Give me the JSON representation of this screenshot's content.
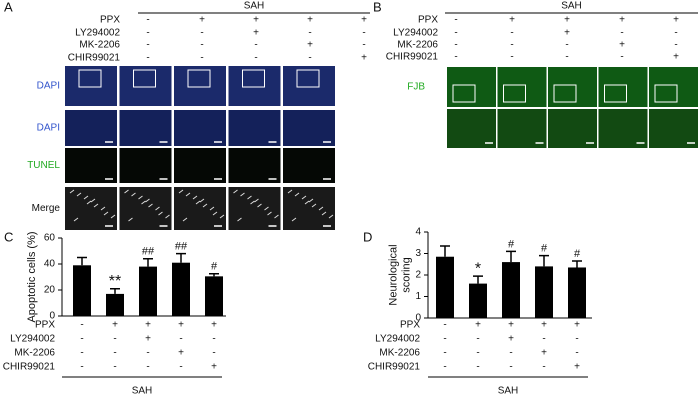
{
  "panels": [
    {
      "letter": "A",
      "group_label": "SAH",
      "conditions": [
        {
          "label": "PPX",
          "signs": [
            "-",
            "+",
            "+",
            "+",
            "+"
          ]
        },
        {
          "label": "LY294002",
          "signs": [
            "-",
            "-",
            "+",
            "-",
            "-"
          ]
        },
        {
          "label": "MK-2206",
          "signs": [
            "-",
            "-",
            "-",
            "+",
            "-"
          ]
        },
        {
          "label": "CHIR99021",
          "signs": [
            "-",
            "-",
            "-",
            "-",
            "+"
          ]
        }
      ],
      "row_labels": [
        "DAPI",
        "DAPI",
        "TUNEL",
        "Merge"
      ]
    },
    {
      "letter": "B",
      "group_label": "SAH",
      "conditions": [
        {
          "label": "PPX",
          "signs": [
            "-",
            "+",
            "+",
            "+",
            "+"
          ]
        },
        {
          "label": "LY294002",
          "signs": [
            "-",
            "-",
            "+",
            "-",
            "-"
          ]
        },
        {
          "label": "MK-2206",
          "signs": [
            "-",
            "-",
            "-",
            "+",
            "-"
          ]
        },
        {
          "label": "CHIR99021",
          "signs": [
            "-",
            "-",
            "-",
            "-",
            "+"
          ]
        }
      ],
      "row_labels": [
        "FJB"
      ]
    }
  ],
  "chart_data": [
    {
      "type": "bar",
      "letter": "C",
      "y_label": [
        "Apoptotic cells (%)"
      ],
      "values": [
        39,
        17,
        38,
        41,
        30.5
      ],
      "errors": [
        6,
        4,
        6,
        7,
        2
      ],
      "annotations": [
        null,
        "**",
        "##",
        "##",
        "#"
      ],
      "ylim": [
        0,
        60
      ],
      "yticks": [
        0,
        20,
        40,
        60
      ],
      "color": "#000000",
      "group_label": "SAH",
      "conditions": [
        {
          "label": "PPX",
          "signs": [
            "-",
            "+",
            "+",
            "+",
            "+"
          ]
        },
        {
          "label": "LY294002",
          "signs": [
            "-",
            "-",
            "+",
            "-",
            "-"
          ]
        },
        {
          "label": "MK-2206",
          "signs": [
            "-",
            "-",
            "-",
            "+",
            "-"
          ]
        },
        {
          "label": "CHIR99021",
          "signs": [
            "-",
            "-",
            "-",
            "-",
            "+"
          ]
        }
      ]
    },
    {
      "type": "bar",
      "letter": "D",
      "y_label": [
        "Neurological",
        "scoring"
      ],
      "values": [
        2.85,
        1.6,
        2.6,
        2.4,
        2.35
      ],
      "errors": [
        0.5,
        0.35,
        0.5,
        0.5,
        0.3
      ],
      "annotations": [
        null,
        "*",
        "#",
        "#",
        "#"
      ],
      "ylim": [
        0,
        4
      ],
      "yticks": [
        0,
        1,
        2,
        3,
        4
      ],
      "color": "#000000",
      "group_label": "SAH",
      "conditions": [
        {
          "label": "PPX",
          "signs": [
            "-",
            "+",
            "+",
            "+",
            "+"
          ]
        },
        {
          "label": "LY294002",
          "signs": [
            "-",
            "-",
            "+",
            "-",
            "-"
          ]
        },
        {
          "label": "MK-2206",
          "signs": [
            "-",
            "-",
            "-",
            "+",
            "-"
          ]
        },
        {
          "label": "CHIR99021",
          "signs": [
            "-",
            "-",
            "-",
            "-",
            "+"
          ]
        }
      ]
    }
  ]
}
